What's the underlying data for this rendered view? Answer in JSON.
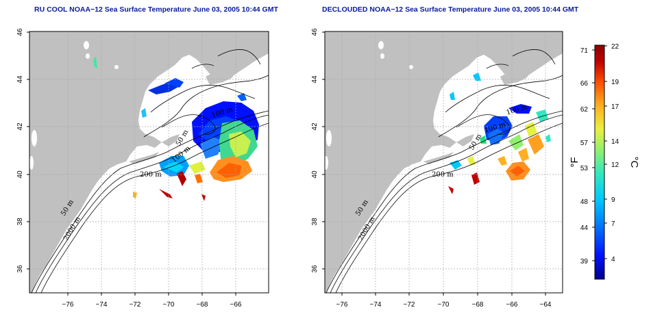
{
  "maps": [
    {
      "id": "left",
      "title": "RU COOL NOAA−12 Sea Surface Temperature June 03, 2005 10:44 GMT",
      "contour_labels": [
        "50 m",
        "2000 m",
        "200 m",
        "100 m",
        "50 m",
        "100 m"
      ]
    },
    {
      "id": "right",
      "title": "DECLOUDED NOAA−12 Sea Surface Temperature June 03, 2005 10:44 GMT",
      "contour_labels": [
        "50 m",
        "2000 m",
        "200 m",
        "100 m",
        "50 m",
        "100 m"
      ]
    }
  ],
  "axes": {
    "lon_ticks": [
      "−76",
      "−74",
      "−72",
      "−70",
      "−68",
      "−66",
      "−64"
    ],
    "lat_ticks": [
      "36",
      "38",
      "40",
      "42",
      "44",
      "46"
    ],
    "lon_range": [
      -77.2,
      -63.2
    ],
    "lat_range": [
      35.0,
      46.0
    ]
  },
  "colorbar": {
    "unit_f": "°F",
    "unit_c": "°C",
    "f_ticks": [
      "71",
      "66",
      "62",
      "57",
      "53",
      "48",
      "44",
      "39"
    ],
    "c_ticks": [
      "22",
      "19",
      "17",
      "14",
      "12",
      "9",
      "7",
      "4"
    ],
    "c_range": [
      2,
      22
    ]
  },
  "colors": {
    "land": "#c0c0c0",
    "title": "#0a1a9c",
    "colorbar_stops": [
      "#00008c",
      "#0010ff",
      "#0070ff",
      "#00c8ff",
      "#30e8c0",
      "#90f070",
      "#e8f040",
      "#ffb020",
      "#ff5000",
      "#c00000",
      "#8c0000"
    ]
  }
}
